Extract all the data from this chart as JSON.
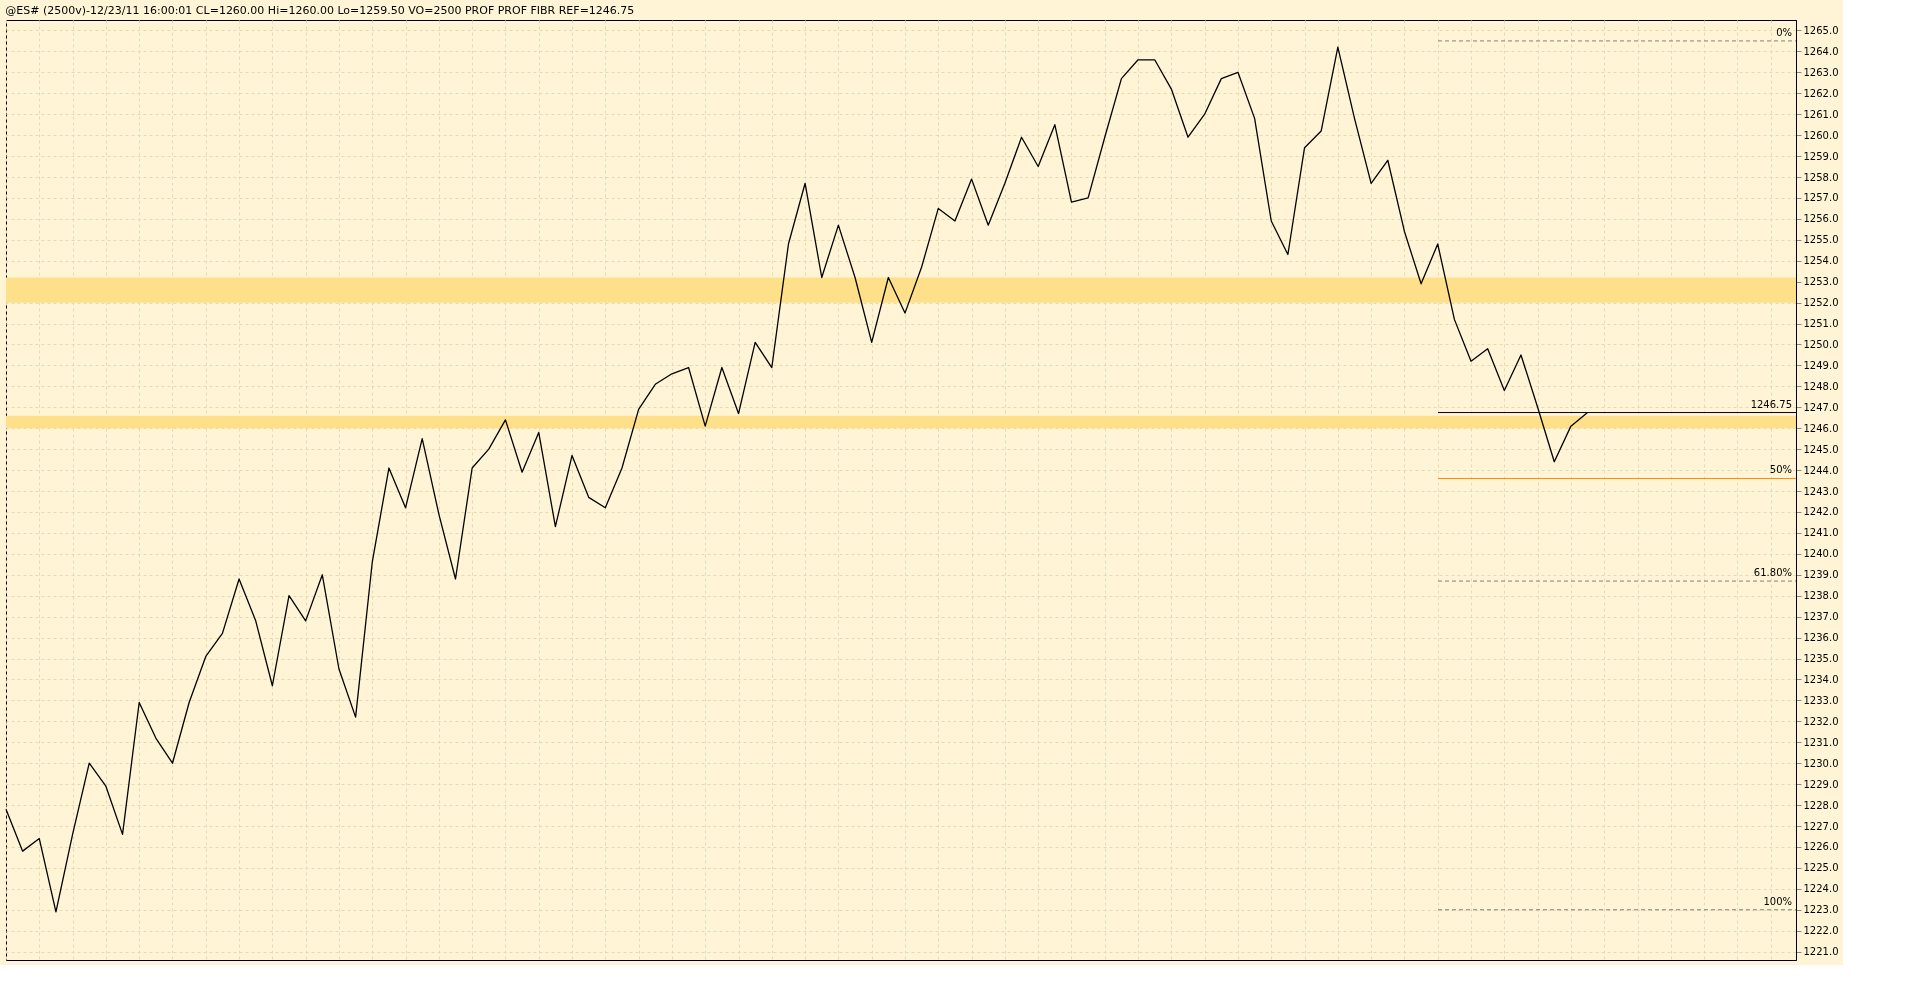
{
  "chart_data": {
    "type": "line",
    "title": "@ES# (2500v)-12/23/11 16:00:01 CL=1260.00 Hi=1260.00 Lo=1259.50 VO=2500 PROF PROF FIBR REF=1246.75",
    "categories": [
      null,
      null,
      null,
      null,
      null,
      null,
      null,
      null,
      null,
      null,
      null,
      null,
      null,
      null,
      null,
      null,
      null,
      null,
      null,
      null,
      null,
      null,
      null,
      null,
      null,
      null,
      null,
      null,
      null,
      null,
      null,
      null,
      null,
      null,
      null,
      null,
      null,
      null,
      null,
      null,
      null,
      null,
      null,
      null,
      null,
      null,
      null,
      null,
      null,
      null,
      null,
      null,
      null,
      null,
      null,
      null,
      null,
      null,
      null,
      null,
      null,
      null,
      null,
      null,
      null,
      null,
      null,
      null,
      null,
      null,
      null,
      null,
      null,
      null,
      null,
      null,
      null,
      null,
      null,
      null,
      null,
      null,
      null,
      null,
      null,
      null,
      null,
      null,
      null,
      null,
      null,
      null,
      null,
      null,
      null,
      null
    ],
    "series": [
      {
        "color": "#000000",
        "values": [
          1227.8,
          1225.8,
          1226.4,
          1222.9,
          1226.6,
          1230,
          1228.9,
          1226.6,
          1232.9,
          1231.2,
          1230,
          1232.9,
          1235.1,
          1236.2,
          1238.8,
          1236.8,
          1233.7,
          1238,
          1236.8,
          1239,
          1234.5,
          1232.2,
          1239.6,
          1244.1,
          1242.2,
          1245.5,
          1241.9,
          1238.8,
          1244.1,
          1245,
          1246.4,
          1243.9,
          1245.8,
          1241.3,
          1244.7,
          1242.7,
          1242.2,
          1244.1,
          1246.9,
          1248.1,
          1248.6,
          1248.9,
          1246.1,
          1248.9,
          1246.7,
          1250.1,
          1248.9,
          1254.8,
          1257.7,
          1253.2,
          1255.7,
          1253.2,
          1250.1,
          1253.2,
          1251.5,
          1253.7,
          1256.5,
          1255.9,
          1257.9,
          1255.7,
          1257.7,
          1259.9,
          1258.5,
          1260.5,
          1256.8,
          1257,
          1259.9,
          1262.7,
          1263.6,
          1263.6,
          1262.2,
          1259.9,
          1261,
          1262.7,
          1263,
          1260.8,
          1255.9,
          1254.3,
          1259.4,
          1260.2,
          1264.2,
          1260.8,
          1257.7,
          1258.8,
          1255.4,
          1252.9,
          1254.8,
          1251.2,
          1249.2,
          1249.8,
          1247.8,
          1249.5,
          1247,
          1244.4,
          1246.1,
          1246.75
        ]
      }
    ],
    "ylim": [
      1220.6,
      1265.5
    ],
    "yticks": [
      {
        "value": 1221,
        "label": "1221.0"
      },
      {
        "value": 1222,
        "label": "1222.0"
      },
      {
        "value": 1223,
        "label": "1223.0"
      },
      {
        "value": 1224,
        "label": "1224.0"
      },
      {
        "value": 1225,
        "label": "1225.0"
      },
      {
        "value": 1226,
        "label": "1226.0"
      },
      {
        "value": 1227,
        "label": "1227.0"
      },
      {
        "value": 1228,
        "label": "1228.0"
      },
      {
        "value": 1229,
        "label": "1229.0"
      },
      {
        "value": 1230,
        "label": "1230.0"
      },
      {
        "value": 1231,
        "label": "1231.0"
      },
      {
        "value": 1232,
        "label": "1232.0"
      },
      {
        "value": 1233,
        "label": "1233.0"
      },
      {
        "value": 1234,
        "label": "1234.0"
      },
      {
        "value": 1235,
        "label": "1235.0"
      },
      {
        "value": 1236,
        "label": "1236.0"
      },
      {
        "value": 1237,
        "label": "1237.0"
      },
      {
        "value": 1238,
        "label": "1238.0"
      },
      {
        "value": 1239,
        "label": "1239.0"
      },
      {
        "value": 1240,
        "label": "1240.0"
      },
      {
        "value": 1241,
        "label": "1241.0"
      },
      {
        "value": 1242,
        "label": "1242.0"
      },
      {
        "value": 1243,
        "label": "1243.0"
      },
      {
        "value": 1244,
        "label": "1244.0"
      },
      {
        "value": 1245,
        "label": "1245.0"
      },
      {
        "value": 1246,
        "label": "1246.0"
      },
      {
        "value": 1247,
        "label": "1247.0"
      },
      {
        "value": 1248,
        "label": "1248.0"
      },
      {
        "value": 1249,
        "label": "1249.0"
      },
      {
        "value": 1250,
        "label": "1250.0"
      },
      {
        "value": 1251,
        "label": "1251.0"
      },
      {
        "value": 1252,
        "label": "1252.0"
      },
      {
        "value": 1253,
        "label": "1253.0"
      },
      {
        "value": 1254,
        "label": "1254.0"
      },
      {
        "value": 1255,
        "label": "1255.0"
      },
      {
        "value": 1256,
        "label": "1256.0"
      },
      {
        "value": 1257,
        "label": "1257.0"
      },
      {
        "value": 1258,
        "label": "1258.0"
      },
      {
        "value": 1259,
        "label": "1259.0"
      },
      {
        "value": 1260,
        "label": "1260.0"
      },
      {
        "value": 1261,
        "label": "1261.0"
      },
      {
        "value": 1262,
        "label": "1262.0"
      },
      {
        "value": 1263,
        "label": "1263.0"
      },
      {
        "value": 1264,
        "label": "1264.0"
      },
      {
        "value": 1265,
        "label": "1265.0"
      }
    ],
    "tick_labels": "y",
    "grid": true,
    "line_style": "solid",
    "marker": "none",
    "legend": false,
    "bands": [
      {
        "axis": "y",
        "from": 1252.0,
        "to": 1253.2,
        "color": "#ffe08a"
      },
      {
        "axis": "y",
        "from": 1246.0,
        "to": 1246.6,
        "color": "#ffe08a"
      }
    ],
    "annotations": [
      {
        "text": "0%",
        "y": 1264.5
      },
      {
        "text": "50%",
        "y": 1243.6
      },
      {
        "text": "61.80%",
        "y": 1238.7
      },
      {
        "text": "100%",
        "y": 1223
      }
    ],
    "ref_lines": [
      {
        "axis": "y",
        "value": 1264.5,
        "color": "#808080",
        "line_style": "dashed"
      },
      {
        "axis": "y",
        "value": 1243.6,
        "color": "#ff8c00",
        "line_style": "solid"
      },
      {
        "axis": "y",
        "value": 1238.7,
        "color": "#808080",
        "line_style": "dashed"
      },
      {
        "axis": "y",
        "value": 1223,
        "color": "#808080",
        "line_style": "dashed"
      },
      {
        "axis": "y",
        "value": 1246.75,
        "label": "1246.75",
        "color": "#000000",
        "line_style": "solid"
      }
    ]
  }
}
